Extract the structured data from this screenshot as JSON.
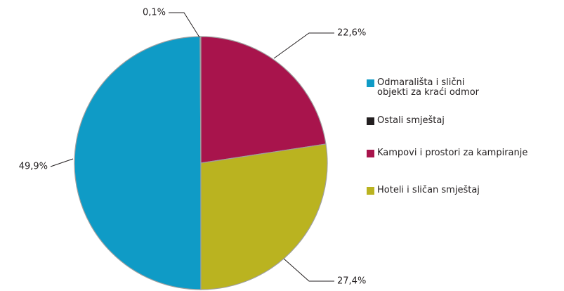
{
  "chart_data": {
    "type": "pie",
    "categories": [
      "Odmarališta i slični objekti za kraći odmor",
      "Ostali smještaj",
      "Kampovi i prostori za kampiranje",
      "Hoteli i sličan smještaj"
    ],
    "values": [
      49.9,
      0.1,
      22.6,
      27.4
    ],
    "value_labels": [
      "49,9%",
      "0,1%",
      "22,6%",
      "27,4%"
    ],
    "colors": [
      "#0f9bc6",
      "#231f20",
      "#a8144c",
      "#bab320"
    ],
    "legend": "right"
  }
}
